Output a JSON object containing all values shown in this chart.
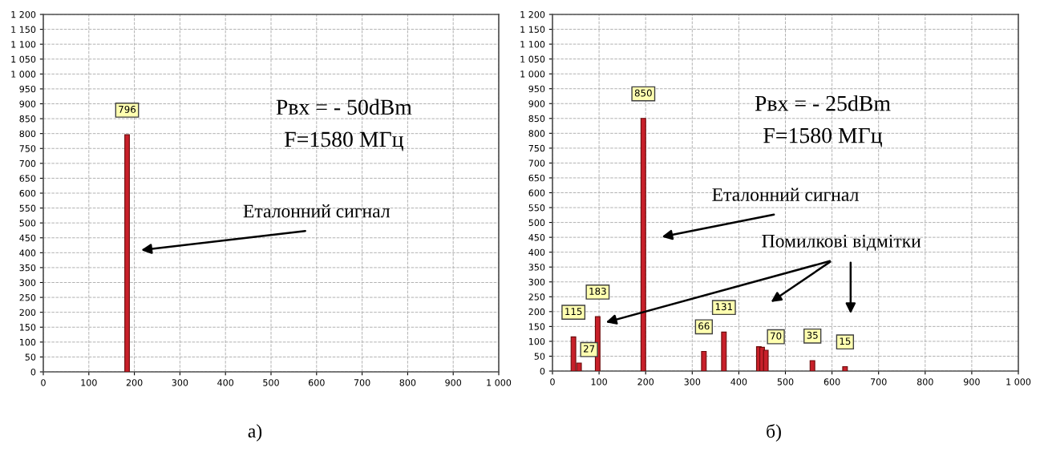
{
  "chart_data": [
    {
      "type": "bar",
      "x": [
        184
      ],
      "values": [
        796
      ],
      "value_labels": [
        "796"
      ],
      "color": "#c8202a",
      "xlim": [
        0,
        1000
      ],
      "ylim": [
        0,
        1200
      ],
      "xticks": [
        0,
        100,
        200,
        300,
        400,
        500,
        600,
        700,
        800,
        900,
        {
          "value": 1000,
          "label": "1 000"
        }
      ],
      "yticks": [
        0,
        50,
        100,
        150,
        200,
        250,
        300,
        350,
        400,
        450,
        500,
        550,
        600,
        650,
        700,
        750,
        800,
        850,
        900,
        950,
        {
          "value": 1000,
          "label": "1 000"
        },
        {
          "value": 1050,
          "label": "1 050"
        },
        {
          "value": 1100,
          "label": "1 100"
        },
        {
          "value": 1150,
          "label": "1 150"
        },
        {
          "value": 1200,
          "label": "1 200"
        }
      ],
      "grid": true,
      "line_style": "dashed",
      "annotations": [
        "Рвх = - 50dBm",
        "F=1580 МГц",
        "Еталонний сигнал",
        "а)"
      ]
    },
    {
      "type": "bar",
      "x": [
        45,
        57,
        97,
        195,
        325,
        368,
        443,
        450,
        458,
        558,
        628
      ],
      "values": [
        115,
        27,
        183,
        850,
        66,
        131,
        82,
        80,
        70,
        35,
        15
      ],
      "value_labels": [
        "115",
        "27",
        "183",
        "850",
        "66",
        "131",
        null,
        null,
        "70",
        "35",
        "15"
      ],
      "color": "#c8202a",
      "xlim": [
        0,
        1000
      ],
      "ylim": [
        0,
        1200
      ],
      "xticks": [
        0,
        100,
        200,
        300,
        400,
        500,
        600,
        700,
        800,
        900,
        {
          "value": 1000,
          "label": "1 000"
        }
      ],
      "yticks": [
        0,
        50,
        100,
        150,
        200,
        250,
        300,
        350,
        400,
        450,
        500,
        550,
        600,
        650,
        700,
        750,
        800,
        850,
        900,
        950,
        {
          "value": 1000,
          "label": "1 000"
        },
        {
          "value": 1050,
          "label": "1 050"
        },
        {
          "value": 1100,
          "label": "1 100"
        },
        {
          "value": 1150,
          "label": "1 150"
        },
        {
          "value": 1200,
          "label": "1 200"
        }
      ],
      "grid": true,
      "line_style": "dashed",
      "annotations": [
        "Рвх = - 25dBm",
        "F=1580 МГц",
        "Еталонний сигнал",
        "Помилкові відмітки",
        "б)"
      ]
    }
  ]
}
